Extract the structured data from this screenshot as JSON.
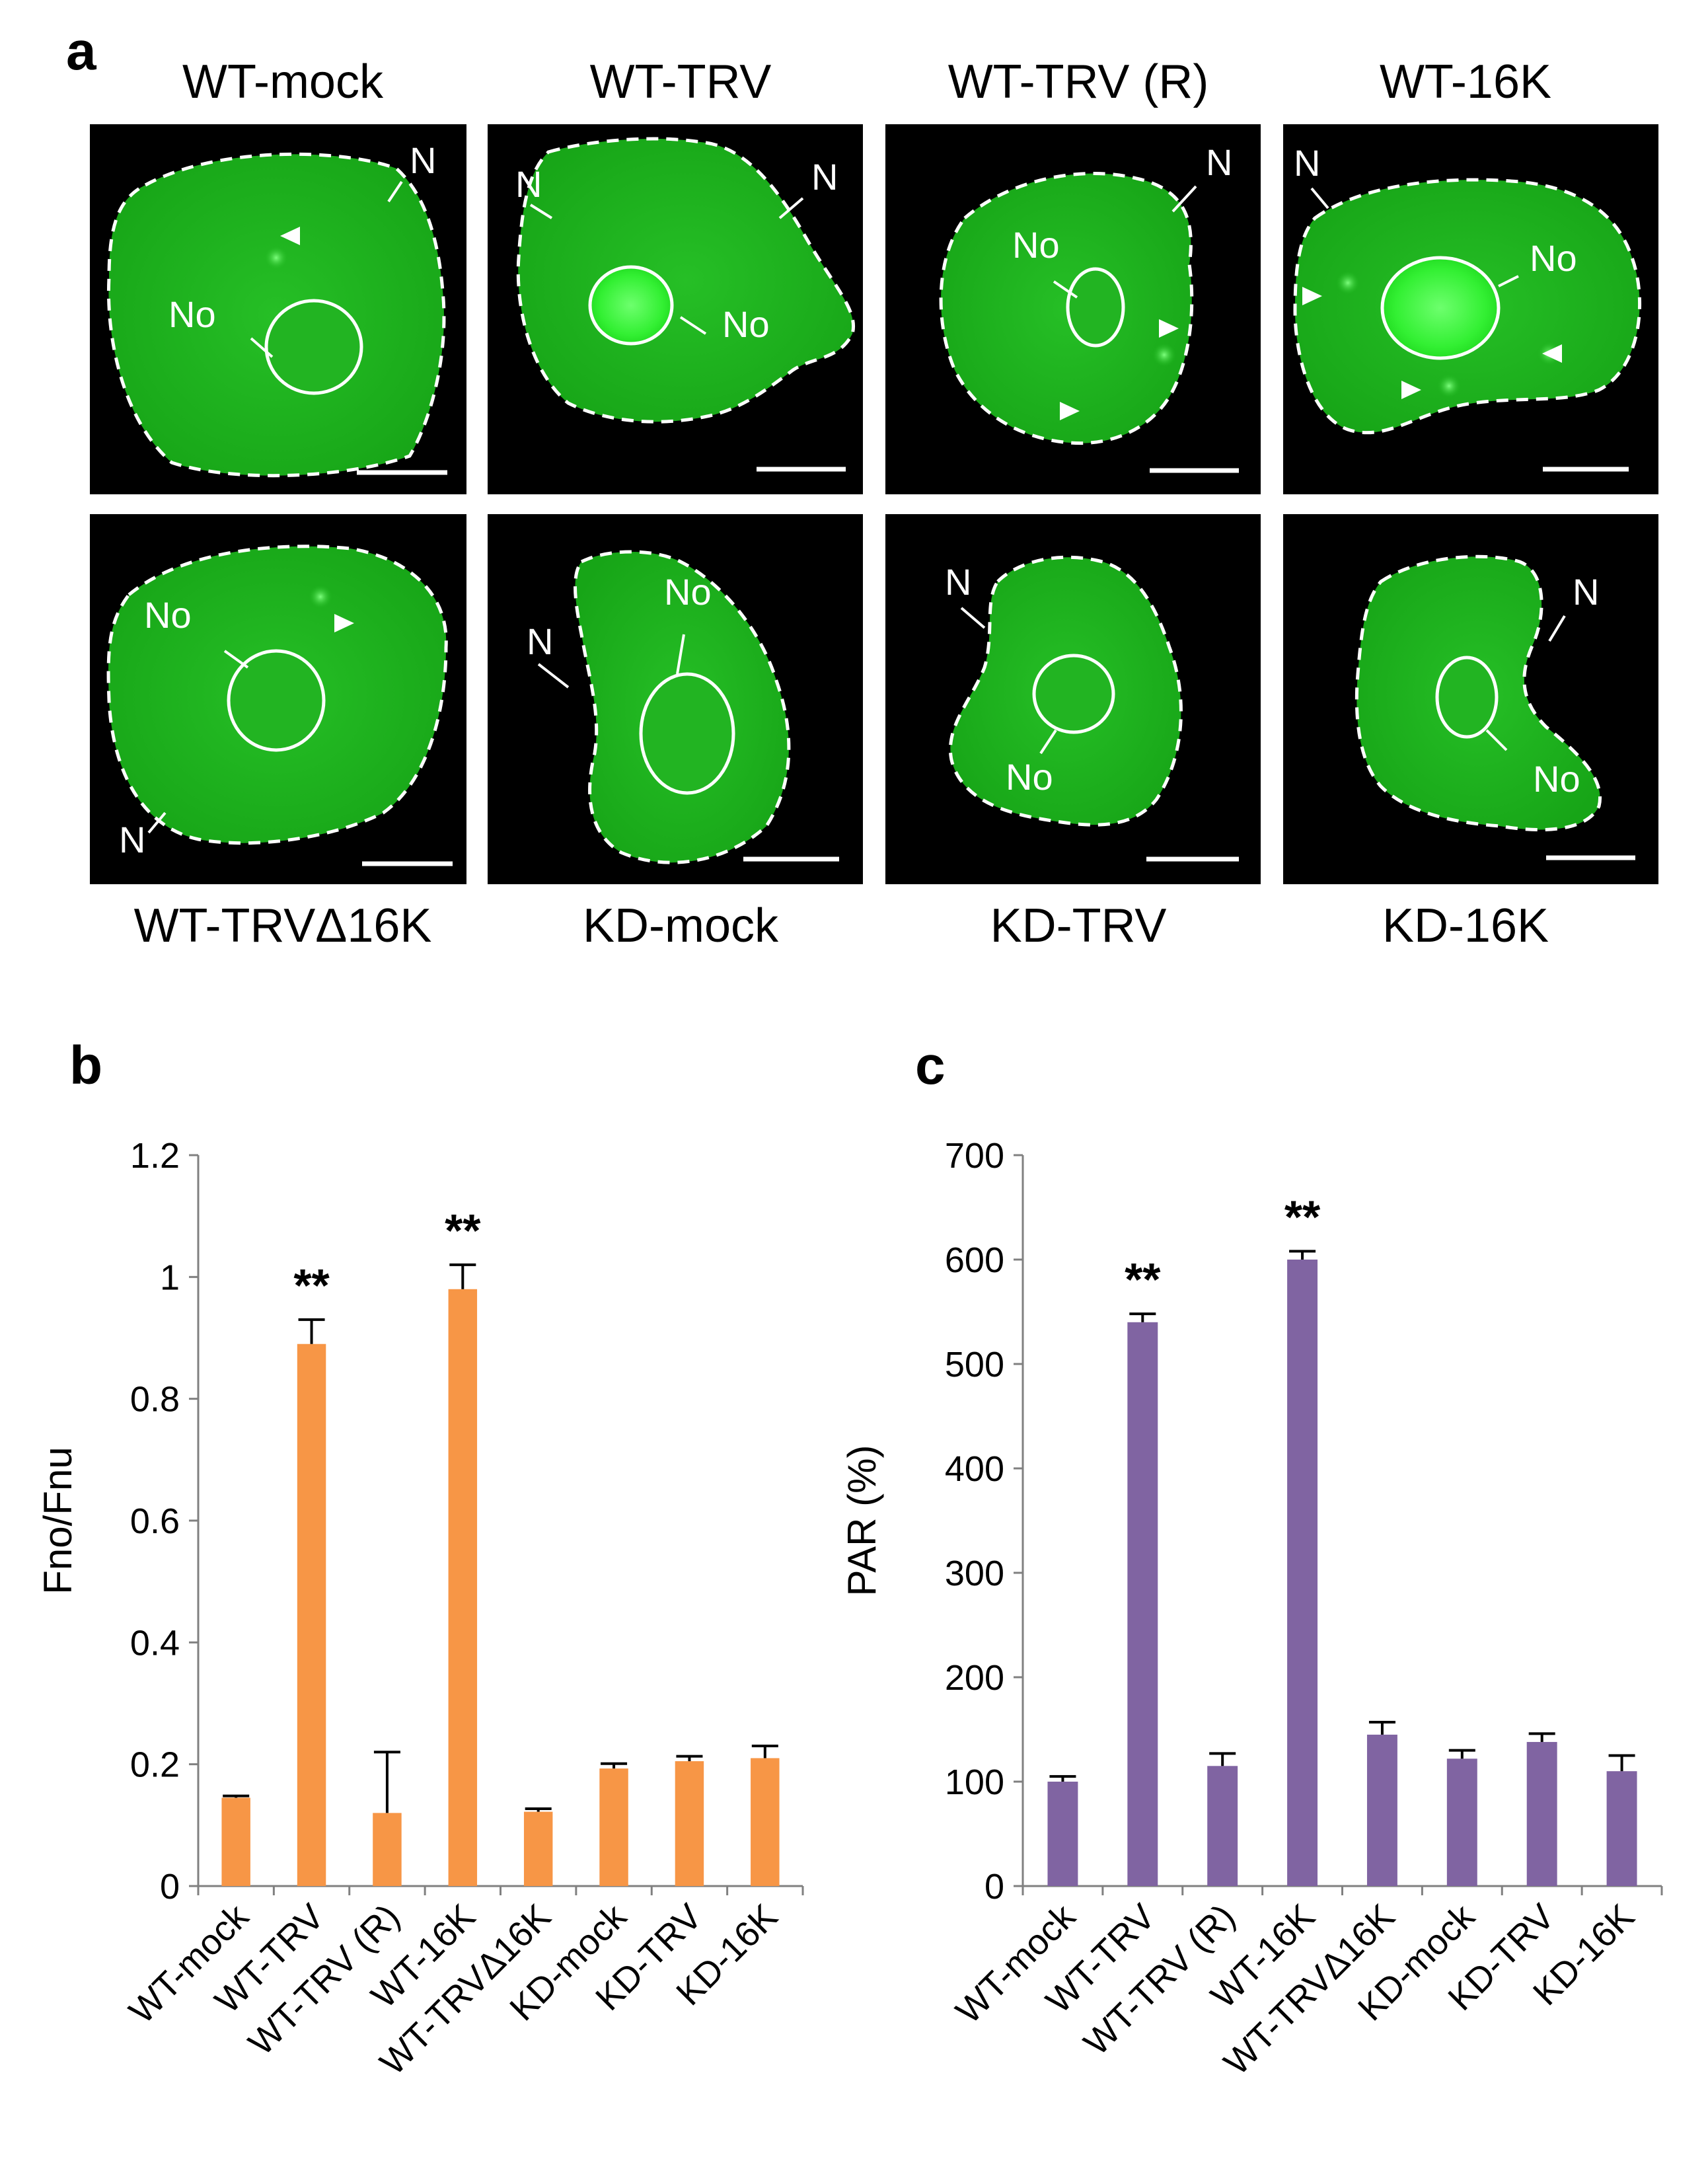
{
  "panel_letters": {
    "a": "a",
    "b": "b",
    "c": "c"
  },
  "colors": {
    "orange": "#F79646",
    "purple": "#8064A2",
    "fluor": "#1fcf1f",
    "bg": "#000000"
  },
  "micrographs": {
    "labels": {
      "nucleus": "N",
      "nucleolus": "No"
    },
    "top": [
      {
        "title": "WT-mock",
        "nucleolus": "dim",
        "foci": 1
      },
      {
        "title": "WT-TRV",
        "nucleolus": "bright",
        "foci": 0
      },
      {
        "title": "WT-TRV (R)",
        "nucleolus": "dim",
        "foci": 2
      },
      {
        "title": "WT-16K",
        "nucleolus": "bright",
        "foci": 3
      }
    ],
    "bottom": [
      {
        "title": "WT-TRVΔ16K",
        "nucleolus": "dim",
        "foci": 1
      },
      {
        "title": "KD-mock",
        "nucleolus": "dim",
        "foci": 0
      },
      {
        "title": "KD-TRV",
        "nucleolus": "dim",
        "foci": 0
      },
      {
        "title": "KD-16K",
        "nucleolus": "dim",
        "foci": 0
      }
    ]
  },
  "chart_data": [
    {
      "panel": "b",
      "type": "bar",
      "categories": [
        "WT-mock",
        "WT-TRV",
        "WT-TRV (R)",
        "WT-16K",
        "WT-TRVΔ16K",
        "KD-mock",
        "KD-TRV",
        "KD-16K"
      ],
      "values": [
        0.145,
        0.89,
        0.12,
        0.98,
        0.122,
        0.193,
        0.205,
        0.21
      ],
      "errors": [
        0.003,
        0.04,
        0.1,
        0.04,
        0.005,
        0.008,
        0.008,
        0.02
      ],
      "significance": [
        "",
        "**",
        "",
        "**",
        "",
        "",
        "",
        ""
      ],
      "ylabel": "Fno/Fnu",
      "ylim": [
        0,
        1.2
      ],
      "yticks": [
        0,
        0.2,
        0.4,
        0.6,
        0.8,
        1,
        1.2
      ],
      "ytick_labels": [
        "0",
        "0.2",
        "0.4",
        "0.6",
        "0.8",
        "1",
        "1.2"
      ],
      "color": "#F79646"
    },
    {
      "panel": "c",
      "type": "bar",
      "categories": [
        "WT-mock",
        "WT-TRV",
        "WT-TRV (R)",
        "WT-16K",
        "WT-TRVΔ16K",
        "KD-mock",
        "KD-TRV",
        "KD-16K"
      ],
      "values": [
        100,
        540,
        115,
        600,
        145,
        122,
        138,
        110
      ],
      "errors": [
        5,
        8,
        12,
        8,
        12,
        8,
        8,
        15
      ],
      "significance": [
        "",
        "**",
        "",
        "**",
        "",
        "",
        "",
        ""
      ],
      "ylabel": "PAR (%)",
      "ylim": [
        0,
        700
      ],
      "yticks": [
        0,
        100,
        200,
        300,
        400,
        500,
        600,
        700
      ],
      "ytick_labels": [
        "0",
        "100",
        "200",
        "300",
        "400",
        "500",
        "600",
        "700"
      ],
      "color": "#8064A2"
    }
  ]
}
